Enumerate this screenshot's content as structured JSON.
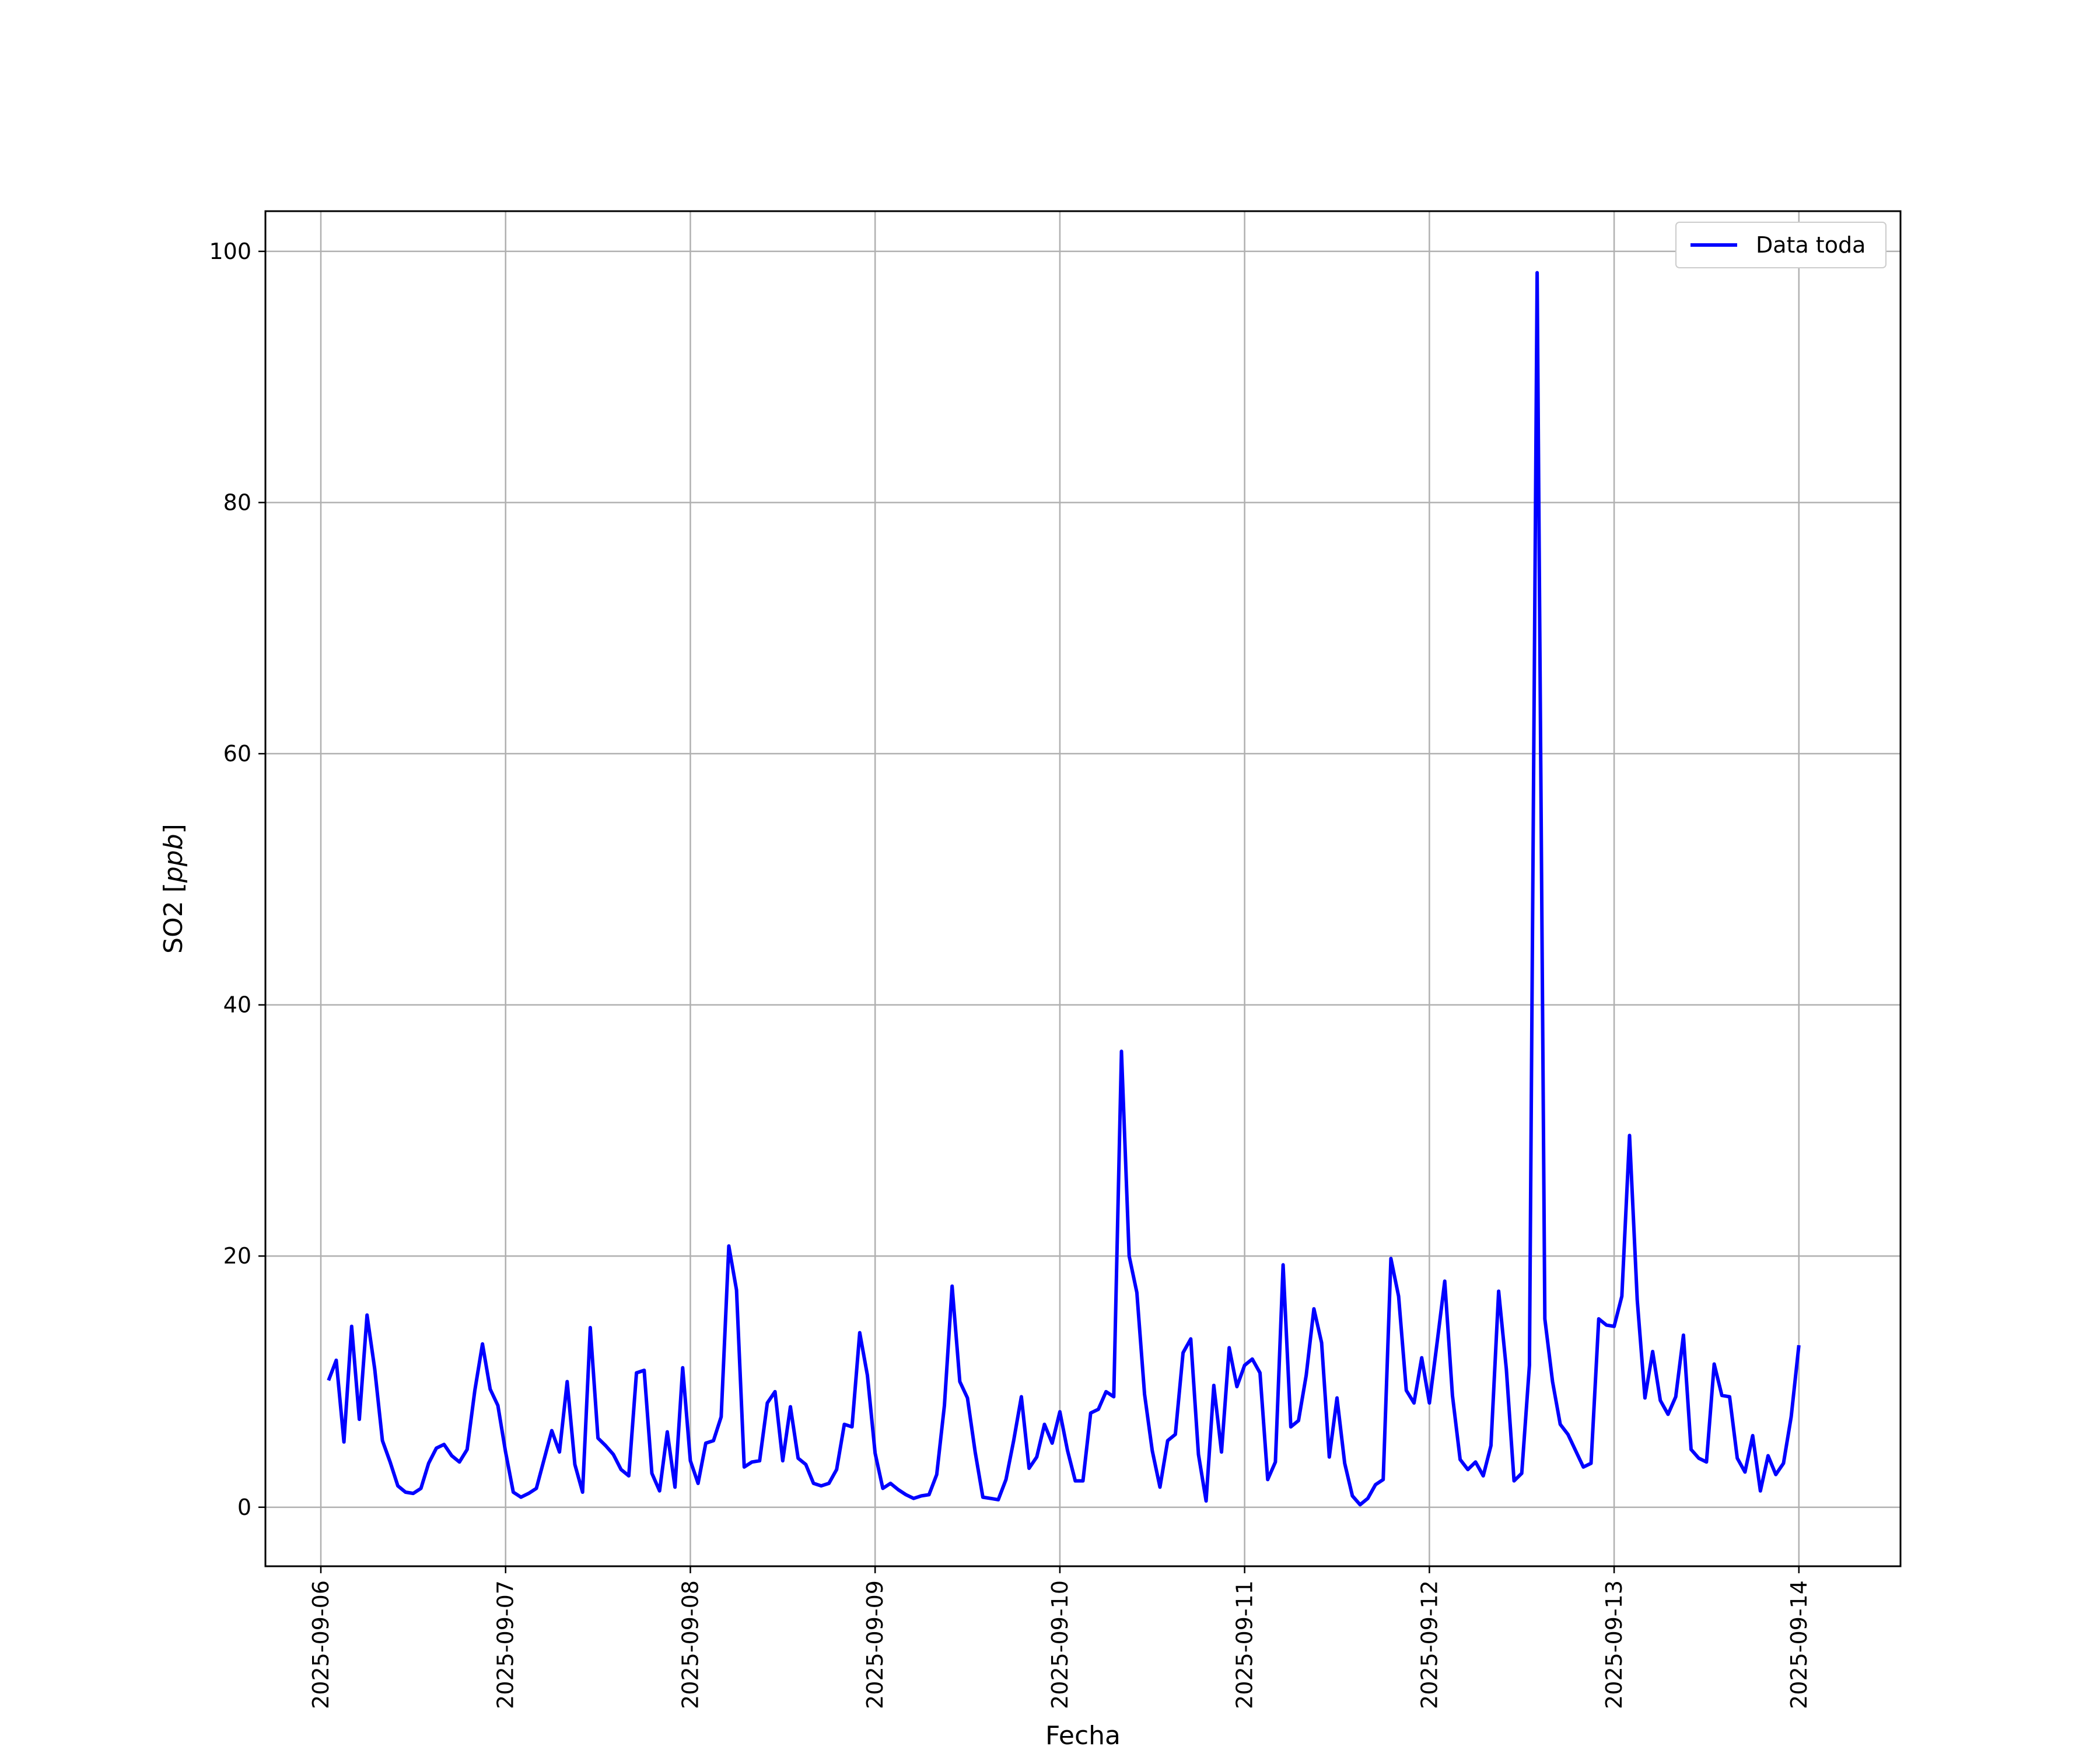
{
  "chart_data": {
    "type": "line",
    "title": "",
    "xlabel": "Fecha",
    "ylabel_text": "SO2",
    "ylabel_unit": "ppb",
    "ylabel": "SO2 [ppb]",
    "x_ticks": [
      "2025-09-06",
      "2025-09-07",
      "2025-09-08",
      "2025-09-09",
      "2025-09-10",
      "2025-09-11",
      "2025-09-12",
      "2025-09-13",
      "2025-09-14"
    ],
    "y_ticks": [
      "0",
      "20",
      "40",
      "60",
      "80",
      "100"
    ],
    "xlim": [
      "2025-09-05 16:48",
      "2025-09-14 13:12"
    ],
    "ylim": [
      -4.7,
      103.2
    ],
    "grid": true,
    "legend": {
      "position": "upper-right",
      "entries": [
        "Data toda"
      ]
    },
    "series": [
      {
        "name": "Data toda",
        "color": "#0000ff",
        "x": [
          "2025-09-06 01:00",
          "2025-09-06 02:00",
          "2025-09-06 03:00",
          "2025-09-06 04:00",
          "2025-09-06 05:00",
          "2025-09-06 06:00",
          "2025-09-06 07:00",
          "2025-09-06 08:00",
          "2025-09-06 09:00",
          "2025-09-06 10:00",
          "2025-09-06 11:00",
          "2025-09-06 12:00",
          "2025-09-06 13:00",
          "2025-09-06 14:00",
          "2025-09-06 15:00",
          "2025-09-06 16:00",
          "2025-09-06 17:00",
          "2025-09-06 18:00",
          "2025-09-06 19:00",
          "2025-09-06 20:00",
          "2025-09-06 21:00",
          "2025-09-06 22:00",
          "2025-09-06 23:00",
          "2025-09-07 00:00",
          "2025-09-07 01:00",
          "2025-09-07 02:00",
          "2025-09-07 03:00",
          "2025-09-07 04:00",
          "2025-09-07 05:00",
          "2025-09-07 06:00",
          "2025-09-07 07:00",
          "2025-09-07 08:00",
          "2025-09-07 09:00",
          "2025-09-07 10:00",
          "2025-09-07 11:00",
          "2025-09-07 12:00",
          "2025-09-07 13:00",
          "2025-09-07 14:00",
          "2025-09-07 15:00",
          "2025-09-07 16:00",
          "2025-09-07 17:00",
          "2025-09-07 18:00",
          "2025-09-07 19:00",
          "2025-09-07 20:00",
          "2025-09-07 21:00",
          "2025-09-07 22:00",
          "2025-09-07 23:00",
          "2025-09-08 00:00",
          "2025-09-08 01:00",
          "2025-09-08 02:00",
          "2025-09-08 03:00",
          "2025-09-08 04:00",
          "2025-09-08 05:00",
          "2025-09-08 06:00",
          "2025-09-08 07:00",
          "2025-09-08 08:00",
          "2025-09-08 09:00",
          "2025-09-08 10:00",
          "2025-09-08 11:00",
          "2025-09-08 12:00",
          "2025-09-08 13:00",
          "2025-09-08 14:00",
          "2025-09-08 15:00",
          "2025-09-08 16:00",
          "2025-09-08 17:00",
          "2025-09-08 18:00",
          "2025-09-08 19:00",
          "2025-09-08 20:00",
          "2025-09-08 21:00",
          "2025-09-08 22:00",
          "2025-09-08 23:00",
          "2025-09-09 00:00",
          "2025-09-09 01:00",
          "2025-09-09 02:00",
          "2025-09-09 03:00",
          "2025-09-09 04:00",
          "2025-09-09 05:00",
          "2025-09-09 06:00",
          "2025-09-09 07:00",
          "2025-09-09 08:00",
          "2025-09-09 09:00",
          "2025-09-09 10:00",
          "2025-09-09 11:00",
          "2025-09-09 12:00",
          "2025-09-09 13:00",
          "2025-09-09 14:00",
          "2025-09-09 15:00",
          "2025-09-09 16:00",
          "2025-09-09 17:00",
          "2025-09-09 18:00",
          "2025-09-09 19:00",
          "2025-09-09 20:00",
          "2025-09-09 21:00",
          "2025-09-09 22:00",
          "2025-09-09 23:00",
          "2025-09-10 00:00",
          "2025-09-10 01:00",
          "2025-09-10 02:00",
          "2025-09-10 03:00",
          "2025-09-10 04:00",
          "2025-09-10 05:00",
          "2025-09-10 06:00",
          "2025-09-10 07:00",
          "2025-09-10 08:00",
          "2025-09-10 09:00",
          "2025-09-10 10:00",
          "2025-09-10 11:00",
          "2025-09-10 12:00",
          "2025-09-10 13:00",
          "2025-09-10 14:00",
          "2025-09-10 15:00",
          "2025-09-10 16:00",
          "2025-09-10 17:00",
          "2025-09-10 18:00",
          "2025-09-10 19:00",
          "2025-09-10 20:00",
          "2025-09-10 21:00",
          "2025-09-10 22:00",
          "2025-09-10 23:00",
          "2025-09-11 00:00",
          "2025-09-11 01:00",
          "2025-09-11 02:00",
          "2025-09-11 03:00",
          "2025-09-11 04:00",
          "2025-09-11 05:00",
          "2025-09-11 06:00",
          "2025-09-11 07:00",
          "2025-09-11 08:00",
          "2025-09-11 09:00",
          "2025-09-11 10:00",
          "2025-09-11 11:00",
          "2025-09-11 12:00",
          "2025-09-11 13:00",
          "2025-09-11 14:00",
          "2025-09-11 15:00",
          "2025-09-11 16:00",
          "2025-09-11 17:00",
          "2025-09-11 18:00",
          "2025-09-11 19:00",
          "2025-09-11 20:00",
          "2025-09-11 21:00",
          "2025-09-11 22:00",
          "2025-09-11 23:00",
          "2025-09-12 00:00",
          "2025-09-12 01:00",
          "2025-09-12 02:00",
          "2025-09-12 03:00",
          "2025-09-12 04:00",
          "2025-09-12 05:00",
          "2025-09-12 06:00",
          "2025-09-12 07:00",
          "2025-09-12 08:00",
          "2025-09-12 09:00",
          "2025-09-12 10:00",
          "2025-09-12 11:00",
          "2025-09-12 12:00",
          "2025-09-12 13:00",
          "2025-09-12 14:00",
          "2025-09-12 15:00",
          "2025-09-12 16:00",
          "2025-09-12 17:00",
          "2025-09-12 18:00",
          "2025-09-12 19:00",
          "2025-09-12 20:00",
          "2025-09-12 21:00",
          "2025-09-12 22:00",
          "2025-09-12 23:00",
          "2025-09-13 00:00",
          "2025-09-13 01:00",
          "2025-09-13 02:00",
          "2025-09-13 03:00",
          "2025-09-13 04:00",
          "2025-09-13 05:00",
          "2025-09-13 06:00",
          "2025-09-13 07:00",
          "2025-09-13 08:00",
          "2025-09-13 09:00",
          "2025-09-13 10:00",
          "2025-09-13 11:00",
          "2025-09-13 12:00",
          "2025-09-13 13:00",
          "2025-09-13 14:00",
          "2025-09-13 15:00",
          "2025-09-13 16:00",
          "2025-09-13 17:00",
          "2025-09-13 18:00",
          "2025-09-13 19:00",
          "2025-09-13 20:00",
          "2025-09-13 21:00",
          "2025-09-13 22:00",
          "2025-09-13 23:00",
          "2025-09-14 00:00"
        ],
        "values": [
          10.1,
          11.7,
          5.2,
          14.4,
          7.0,
          15.3,
          11.0,
          5.3,
          3.6,
          1.7,
          1.2,
          1.1,
          1.5,
          3.5,
          4.7,
          5.0,
          4.1,
          3.6,
          4.6,
          9.3,
          13.0,
          9.4,
          8.1,
          4.4,
          1.2,
          0.8,
          1.1,
          1.5,
          3.8,
          6.1,
          4.4,
          10.0,
          3.4,
          1.2,
          14.3,
          5.5,
          4.9,
          4.2,
          3.0,
          2.5,
          10.7,
          10.9,
          2.7,
          1.3,
          6.0,
          1.6,
          11.1,
          3.7,
          1.9,
          5.1,
          5.3,
          7.2,
          20.8,
          17.3,
          3.2,
          3.6,
          3.7,
          8.3,
          9.2,
          3.7,
          8.0,
          3.9,
          3.4,
          1.9,
          1.7,
          1.9,
          3.0,
          6.6,
          6.4,
          13.9,
          10.5,
          4.3,
          1.5,
          1.9,
          1.4,
          1.0,
          0.7,
          0.9,
          1.0,
          2.6,
          8.1,
          17.6,
          10.0,
          8.7,
          4.4,
          0.8,
          0.7,
          0.6,
          2.2,
          5.3,
          8.8,
          3.1,
          4.0,
          6.6,
          5.1,
          7.6,
          4.5,
          2.1,
          2.1,
          7.5,
          7.8,
          9.2,
          8.8,
          36.3,
          20.0,
          17.1,
          9.0,
          4.5,
          1.6,
          5.3,
          5.8,
          12.3,
          13.4,
          4.2,
          0.5,
          9.7,
          4.4,
          12.7,
          9.6,
          11.3,
          11.8,
          10.7,
          2.2,
          3.6,
          19.3,
          6.4,
          6.9,
          10.5,
          15.8,
          13.1,
          4.0,
          8.7,
          3.5,
          0.9,
          0.2,
          0.7,
          1.8,
          2.2,
          19.8,
          16.8,
          9.3,
          8.3,
          11.9,
          8.3,
          13.1,
          18.0,
          8.9,
          3.8,
          3.0,
          3.6,
          2.5,
          4.9,
          17.2,
          11.0,
          2.1,
          2.7,
          11.3,
          98.3,
          15.0,
          10.0,
          6.6,
          5.8,
          4.5,
          3.2,
          3.5,
          15.0,
          14.5,
          14.4,
          16.8,
          29.6,
          16.5,
          8.7,
          12.4,
          8.5,
          7.4,
          8.8,
          13.7,
          4.6,
          3.9,
          3.6,
          11.4,
          8.9,
          8.8,
          3.9,
          2.8,
          5.7,
          1.3,
          4.1,
          2.6,
          3.5,
          7.2,
          12.9
        ]
      }
    ]
  }
}
